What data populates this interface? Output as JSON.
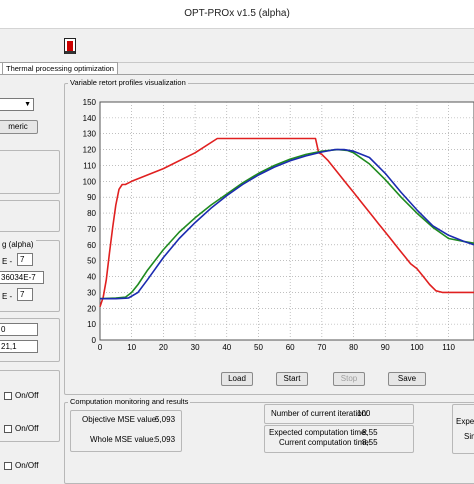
{
  "window": {
    "title": "OPT-PROx  v1.5 (alpha)"
  },
  "tabs": [
    {
      "label": "Thermal processing optimization"
    }
  ],
  "left_panel": {
    "numeric_button": "meric",
    "label_alpha": "g (alpha)",
    "exp1_mantissa_label": "E -",
    "exp1_value": "7",
    "alpha_value": "36034E-7",
    "exp2_mantissa_label": "E -",
    "exp2_value": "7",
    "value_0": "0",
    "value_211": "21,1",
    "toggle1_label": "On/Off",
    "toggle2_label": "On/Off",
    "toggle3_label": "On/Off"
  },
  "chart_group": {
    "title": "Variable retort profiles visualization"
  },
  "chart_data": {
    "type": "line",
    "xlabel": "",
    "ylabel": "",
    "xlim": [
      0,
      118
    ],
    "ylim": [
      0,
      150
    ],
    "x_ticks": [
      0,
      10,
      20,
      30,
      40,
      50,
      60,
      70,
      80,
      90,
      100,
      110
    ],
    "y_ticks": [
      0,
      10,
      20,
      30,
      40,
      50,
      60,
      70,
      80,
      90,
      100,
      110,
      120,
      130,
      140,
      150
    ],
    "grid": true,
    "series": [
      {
        "color": "#e02020",
        "x": [
          0,
          1,
          2,
          3,
          4,
          5,
          6,
          7,
          8,
          9,
          10,
          20,
          30,
          37,
          45,
          55,
          65,
          68,
          69,
          70,
          72,
          74,
          76,
          78,
          80,
          82,
          84,
          86,
          88,
          90,
          92,
          94,
          96,
          98,
          100,
          102,
          104,
          106,
          108,
          110,
          112,
          118
        ],
        "y": [
          21,
          27,
          38,
          55,
          71,
          85,
          95,
          98,
          98,
          99,
          100,
          108,
          118,
          127,
          127,
          127,
          127,
          127,
          118,
          117,
          113,
          108,
          103,
          98,
          93,
          88,
          83,
          78,
          73,
          68,
          63,
          58,
          53,
          48,
          45,
          40,
          35,
          31,
          30,
          30,
          30,
          30
        ]
      },
      {
        "color": "#1f8a1f",
        "x": [
          0,
          5,
          8,
          10,
          12,
          15,
          20,
          25,
          30,
          35,
          40,
          45,
          50,
          55,
          60,
          65,
          70,
          75,
          78,
          80,
          85,
          90,
          95,
          100,
          105,
          110,
          115,
          118
        ],
        "y": [
          26,
          26.5,
          27,
          30,
          35,
          44,
          57,
          68,
          77,
          85,
          92,
          99,
          105,
          110,
          114,
          117,
          119,
          120,
          119.5,
          118,
          111,
          101,
          90,
          80,
          71,
          64,
          62,
          61
        ]
      },
      {
        "color": "#1b2bb0",
        "x": [
          0,
          5,
          9,
          12,
          15,
          20,
          25,
          30,
          35,
          40,
          45,
          50,
          55,
          60,
          65,
          70,
          74,
          77,
          80,
          85,
          90,
          95,
          100,
          105,
          110,
          115,
          118
        ],
        "y": [
          26,
          26,
          26.5,
          30,
          38,
          52,
          64,
          74,
          83,
          91,
          98,
          104,
          109,
          113,
          116,
          118.5,
          120,
          120,
          119,
          115,
          105,
          93,
          82,
          72,
          66,
          62,
          60
        ]
      }
    ]
  },
  "chart_buttons": {
    "load": "Load",
    "start": "Start",
    "stop": "Stop",
    "save": "Save"
  },
  "monitoring": {
    "title": "Computation monitoring and results",
    "objective_label": "Objective MSE value:",
    "objective_value": "5,093",
    "whole_label": "Whole MSE value:",
    "whole_value": "5,093",
    "iteration_label": "Number of current iteration:",
    "iteration_value": "100",
    "expected_time_label": "Expected computation time:",
    "expected_time_value": "8,55",
    "current_time_label": "Current computation time:",
    "current_time_value": "8,55",
    "right_label_1": "Expe",
    "right_label_2": "Sim"
  }
}
